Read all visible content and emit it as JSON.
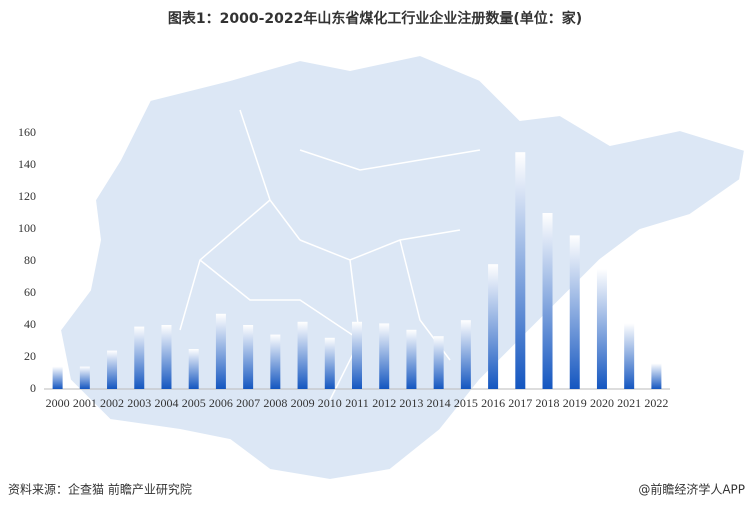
{
  "chart_data": {
    "type": "bar",
    "title": "图表1：2000-2022年山东省煤化工行业企业注册数量(单位：家)",
    "categories": [
      "2000",
      "2001",
      "2002",
      "2003",
      "2004",
      "2005",
      "2006",
      "2007",
      "2008",
      "2009",
      "2010",
      "2011",
      "2012",
      "2013",
      "2014",
      "2015",
      "2016",
      "2017",
      "2018",
      "2019",
      "2020",
      "2021",
      "2022"
    ],
    "values": [
      14,
      14,
      24,
      39,
      40,
      25,
      47,
      40,
      34,
      42,
      32,
      42,
      41,
      37,
      33,
      43,
      78,
      148,
      110,
      96,
      75,
      41,
      16
    ],
    "color": "#1456c0",
    "ylim": [
      0,
      160
    ],
    "yticks": [
      0,
      20,
      40,
      60,
      80,
      100,
      120,
      140,
      160
    ],
    "grid": false
  },
  "footer": {
    "source": "资料来源：企查猫 前瞻产业研究院",
    "brand": "@前瞻经济学人APP"
  }
}
